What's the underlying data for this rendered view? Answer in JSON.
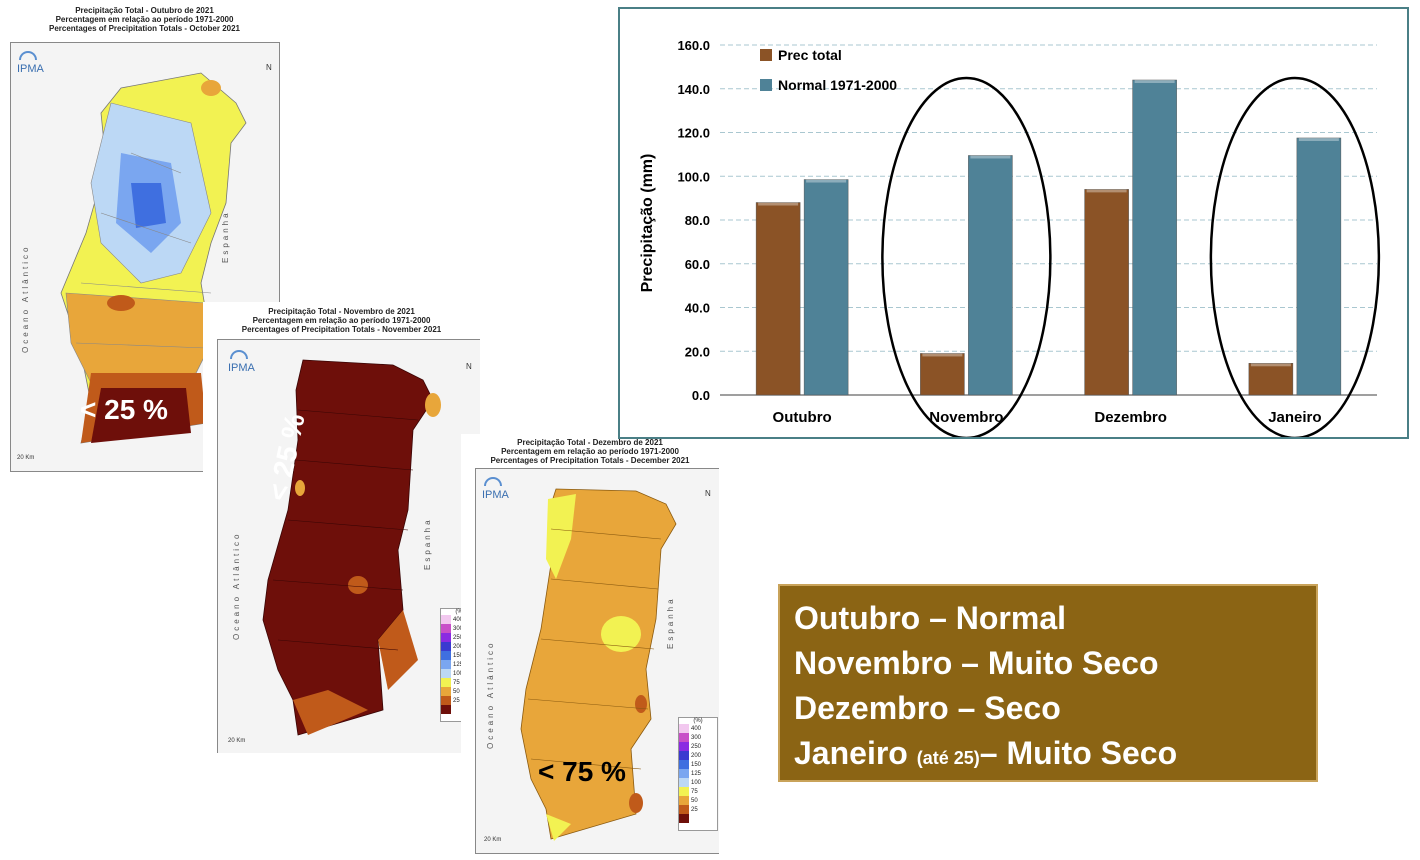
{
  "maps": {
    "october": {
      "title_lines": [
        "Precipitação Total  -  Outubro de 2021",
        "Percentagem em relação ao período 1971-2000",
        "Percentages of Precipitation Totals - October 2021"
      ],
      "overlay": "< 25 %",
      "ocean_label": "Oceano Atlântico",
      "spain_label": "Espanha"
    },
    "november": {
      "title_lines": [
        "Precipitação Total  -  Novembro de 2021",
        "Percentagem em relação ao período 1971-2000",
        "Percentages of Precipitation Totals - November 2021"
      ],
      "overlay": "< 25 %",
      "ocean_label": "Oceano Atlântico",
      "spain_label": "Espanha"
    },
    "december": {
      "title_lines": [
        "Precipitação Total  -  Dezembro de 2021",
        "Percentagem em relação ao período 1971-2000",
        "Percentages of Precipitation Totals - December 2021"
      ],
      "overlay": "< 75 %",
      "ocean_label": "Oceano Atlântico",
      "spain_label": "Espanha"
    },
    "logo": "IPMA",
    "north": "N",
    "scale_label": "20 Km",
    "legend_title": "(%)",
    "legend": [
      {
        "label": "400",
        "color": "#f2c8ef"
      },
      {
        "label": "300",
        "color": "#c84fc8"
      },
      {
        "label": "250",
        "color": "#8a2be2"
      },
      {
        "label": "200",
        "color": "#3a3ad0"
      },
      {
        "label": "150",
        "color": "#3f6fe0"
      },
      {
        "label": "125",
        "color": "#7aa6f0"
      },
      {
        "label": "100",
        "color": "#bcd8f5"
      },
      {
        "label": "75",
        "color": "#f2f252"
      },
      {
        "label": "50",
        "color": "#e8a63a"
      },
      {
        "label": "25",
        "color": "#c05a1a"
      },
      {
        "label": "",
        "color": "#6e0f0a"
      }
    ]
  },
  "chart_data": {
    "type": "bar",
    "categories": [
      "Outubro",
      "Novembro",
      "Dezembro",
      "Janeiro"
    ],
    "series": [
      {
        "name": "Prec total",
        "values": [
          88.0,
          19.0,
          94.0,
          14.5
        ],
        "color": "#8b5326"
      },
      {
        "name": "Normal 1971-2000",
        "values": [
          98.5,
          109.5,
          144.0,
          117.5
        ],
        "color": "#4f8297"
      }
    ],
    "ylabel": "Precipitação (mm)",
    "ylim": [
      0,
      160
    ],
    "yticks": [
      "0.0",
      "20.0",
      "40.0",
      "60.0",
      "80.0",
      "100.0",
      "120.0",
      "140.0",
      "160.0"
    ],
    "grid": true,
    "legend_position": "top-left",
    "highlighted": [
      "Novembro",
      "Janeiro"
    ]
  },
  "summary": {
    "line1": "Outubro – Normal",
    "line2": "Novembro – Muito Seco",
    "line3": "Dezembro – Seco",
    "line4_a": "Janeiro ",
    "line4_b": "(até 25)",
    "line4_c": "– Muito Seco"
  }
}
